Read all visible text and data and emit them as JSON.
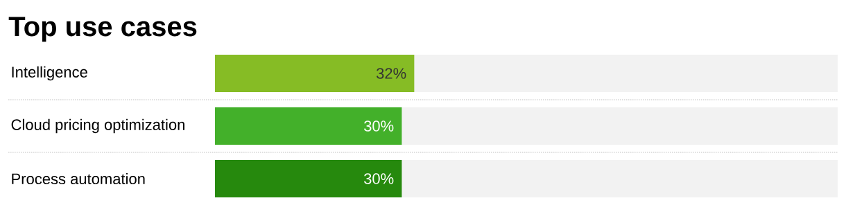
{
  "chart_data": {
    "type": "bar",
    "orientation": "horizontal",
    "title": "Top use cases",
    "categories": [
      "Intelligence",
      "Cloud pricing optimization",
      "Process automation"
    ],
    "values": [
      32,
      30,
      30
    ],
    "colors": [
      "#86bc25",
      "#43b02a",
      "#26890d"
    ],
    "value_labels": [
      "32%",
      "30%",
      "30%"
    ],
    "xlim": [
      0,
      100
    ],
    "tick_labels": "y"
  }
}
